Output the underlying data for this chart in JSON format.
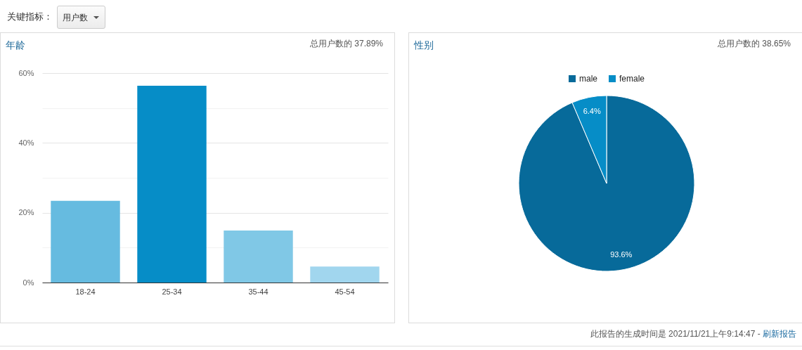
{
  "chart_data": [
    {
      "type": "bar",
      "title": "年龄",
      "subtitle": "总用户数的 37.89%",
      "categories": [
        "18-24",
        "25-34",
        "35-44",
        "45-54"
      ],
      "values": [
        23.4,
        56.4,
        14.9,
        4.6
      ],
      "colors": [
        "#66bbe0",
        "#068dc7",
        "#80c8e6",
        "#a1d6ee"
      ],
      "ylim": [
        0,
        60
      ],
      "yticks": [
        {
          "value": 0,
          "label": "0%"
        },
        {
          "value": 10,
          "label": null
        },
        {
          "value": 20,
          "label": "20%"
        },
        {
          "value": 30,
          "label": null
        },
        {
          "value": 40,
          "label": "40%"
        },
        {
          "value": 50,
          "label": null
        },
        {
          "value": 60,
          "label": "60%"
        }
      ],
      "grid": "y",
      "annotations": [
        "关键指标：",
        "用户数"
      ]
    },
    {
      "type": "pie",
      "title": "性别",
      "subtitle": "总用户数的 38.65%",
      "categories": [
        "male",
        "female"
      ],
      "values": [
        93.6,
        6.4
      ],
      "colors": [
        "#076a9a",
        "#068dc7"
      ],
      "value_labels": [
        "93.6%",
        "6.4%"
      ],
      "legend": "top",
      "annotations": [
        "此报告的生成时间是 2021/11/21上午9:14:47 -",
        "刷新报告"
      ]
    }
  ]
}
